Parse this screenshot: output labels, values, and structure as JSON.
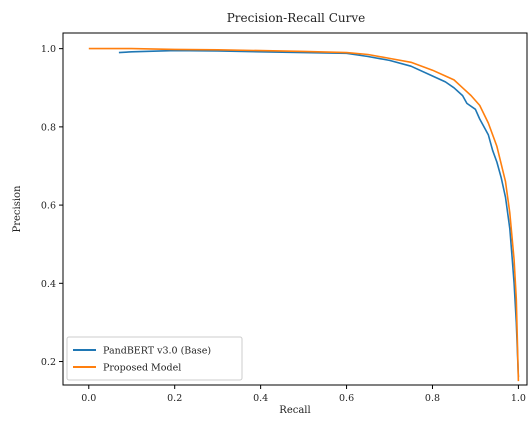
{
  "chart_data": {
    "type": "line",
    "title": "Precision-Recall Curve",
    "xlabel": "Recall",
    "ylabel": "Precision",
    "xlim": [
      -0.06,
      1.02
    ],
    "ylim": [
      0.14,
      1.04
    ],
    "x_ticks": [
      0.0,
      0.2,
      0.4,
      0.6,
      0.8,
      1.0
    ],
    "y_ticks": [
      0.2,
      0.4,
      0.6,
      0.8,
      1.0
    ],
    "x_tick_labels": [
      "0.0",
      "0.2",
      "0.4",
      "0.6",
      "0.8",
      "1.0"
    ],
    "y_tick_labels": [
      "0.2",
      "0.4",
      "0.6",
      "0.8",
      "1.0"
    ],
    "grid": false,
    "legend_position": "lower-left",
    "series": [
      {
        "name": "PandBERT v3.0 (Base)",
        "color": "#1f77b4",
        "points": [
          [
            0.07,
            0.99
          ],
          [
            0.1,
            0.992
          ],
          [
            0.2,
            0.995
          ],
          [
            0.3,
            0.994
          ],
          [
            0.4,
            0.992
          ],
          [
            0.5,
            0.99
          ],
          [
            0.6,
            0.988
          ],
          [
            0.65,
            0.98
          ],
          [
            0.7,
            0.97
          ],
          [
            0.75,
            0.955
          ],
          [
            0.8,
            0.93
          ],
          [
            0.83,
            0.915
          ],
          [
            0.85,
            0.9
          ],
          [
            0.87,
            0.88
          ],
          [
            0.88,
            0.86
          ],
          [
            0.9,
            0.845
          ],
          [
            0.91,
            0.82
          ],
          [
            0.93,
            0.78
          ],
          [
            0.94,
            0.74
          ],
          [
            0.95,
            0.71
          ],
          [
            0.96,
            0.67
          ],
          [
            0.97,
            0.62
          ],
          [
            0.98,
            0.54
          ],
          [
            0.985,
            0.47
          ],
          [
            0.99,
            0.4
          ],
          [
            0.995,
            0.3
          ],
          [
            1.0,
            0.16
          ]
        ]
      },
      {
        "name": "Proposed Model",
        "color": "#ff7f0e",
        "points": [
          [
            0.0,
            1.0
          ],
          [
            0.1,
            1.0
          ],
          [
            0.2,
            0.998
          ],
          [
            0.3,
            0.997
          ],
          [
            0.4,
            0.995
          ],
          [
            0.5,
            0.993
          ],
          [
            0.6,
            0.99
          ],
          [
            0.65,
            0.985
          ],
          [
            0.7,
            0.975
          ],
          [
            0.75,
            0.965
          ],
          [
            0.8,
            0.945
          ],
          [
            0.83,
            0.93
          ],
          [
            0.85,
            0.92
          ],
          [
            0.87,
            0.9
          ],
          [
            0.89,
            0.88
          ],
          [
            0.91,
            0.855
          ],
          [
            0.93,
            0.81
          ],
          [
            0.95,
            0.75
          ],
          [
            0.97,
            0.66
          ],
          [
            0.98,
            0.58
          ],
          [
            0.99,
            0.46
          ],
          [
            0.995,
            0.36
          ],
          [
            1.0,
            0.15
          ]
        ]
      }
    ]
  }
}
